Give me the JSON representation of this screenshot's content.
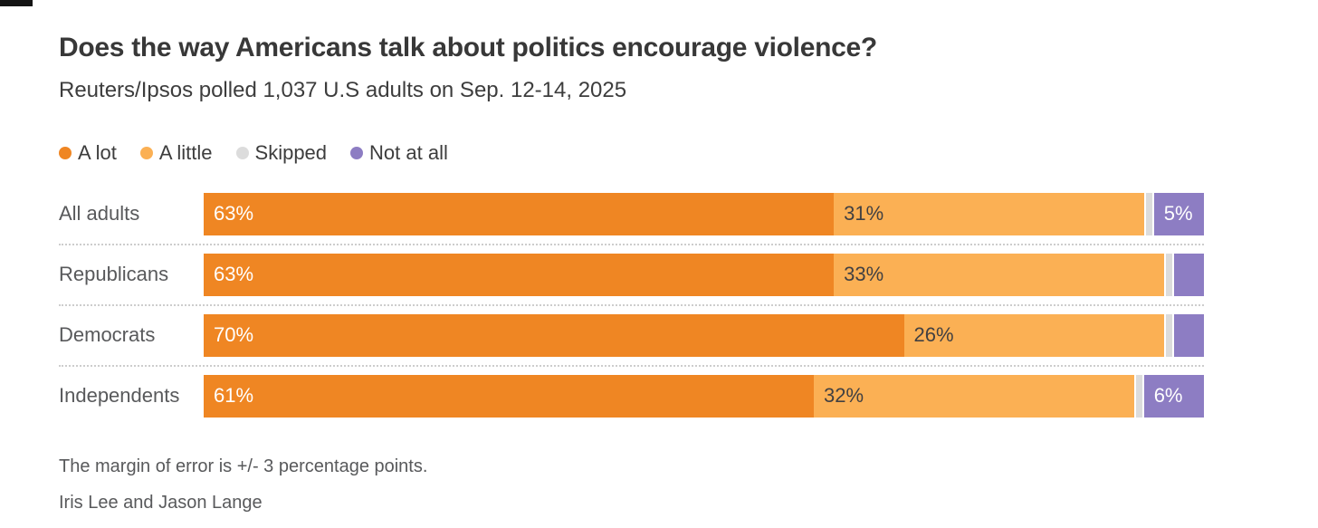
{
  "header": {
    "title": "Does the way Americans talk about politics encourage violence?",
    "subtitle": "Reuters/Ipsos polled 1,037 U.S adults on Sep. 12-14, 2025"
  },
  "chart_data": {
    "type": "bar",
    "orientation": "horizontal-stacked",
    "unit": "percent",
    "xlim": [
      0,
      100
    ],
    "grid": false,
    "legend_position": "top",
    "categories": [
      "All adults",
      "Republicans",
      "Democrats",
      "Independents"
    ],
    "series": [
      {
        "name": "A lot",
        "color": "#ef8623",
        "label_color": "#ffffff",
        "values": [
          63,
          63,
          70,
          61
        ],
        "labels": [
          "63%",
          "63%",
          "70%",
          "61%"
        ]
      },
      {
        "name": "A little",
        "color": "#fbb054",
        "label_color": "#414042",
        "values": [
          31,
          33,
          26,
          32
        ],
        "labels": [
          "31%",
          "33%",
          "26%",
          "32%"
        ]
      },
      {
        "name": "Skipped",
        "color": "#dcdcdc",
        "label_color": "#414042",
        "values": [
          1,
          1,
          1,
          1
        ],
        "labels": [
          "",
          "",
          "",
          ""
        ]
      },
      {
        "name": "Not at all",
        "color": "#8d7dc3",
        "label_color": "#ffffff",
        "values": [
          5,
          3,
          3,
          6
        ],
        "labels": [
          "5%",
          "",
          "",
          "6%"
        ]
      }
    ]
  },
  "footer": {
    "note": "The margin of error is +/- 3 percentage points.",
    "byline": "Iris Lee and Jason Lange"
  }
}
